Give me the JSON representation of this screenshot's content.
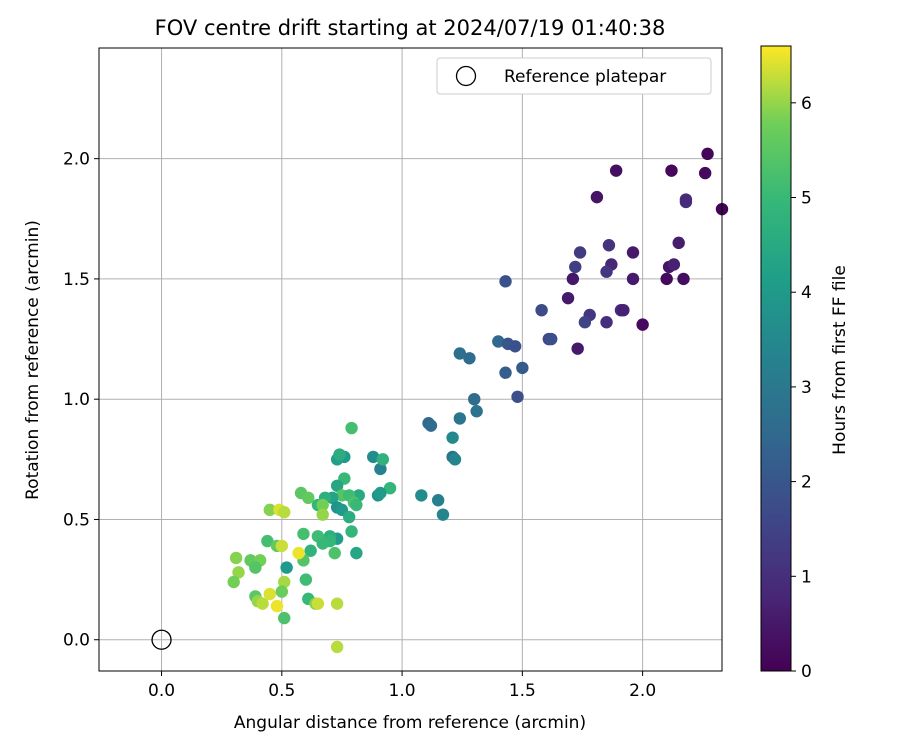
{
  "chart_data": {
    "type": "scatter",
    "title": "FOV centre drift starting at 2024/07/19 01:40:38",
    "xlabel": "Angular distance from reference (arcmin)",
    "ylabel": "Rotation from reference (arcmin)",
    "xlim": [
      -0.26,
      2.33
    ],
    "ylim": [
      -0.13,
      2.46
    ],
    "xticks": [
      "0.0",
      "0.5",
      "1.0",
      "1.5",
      "2.0"
    ],
    "yticks": [
      "0.0",
      "0.5",
      "1.0",
      "1.5",
      "2.0"
    ],
    "grid": true,
    "legend": {
      "placement": "top-right",
      "entries": [
        "Reference platepar"
      ]
    },
    "reference_point": {
      "x": 0.0,
      "y": 0.0
    },
    "colorbar": {
      "label": "Hours from first FF file",
      "colormap": "viridis",
      "range": [
        0,
        6.6
      ],
      "ticks": [
        "0",
        "1",
        "2",
        "3",
        "4",
        "5",
        "6"
      ]
    },
    "points": [
      [
        2.27,
        2.02,
        0.1
      ],
      [
        2.12,
        1.95,
        0.15
      ],
      [
        1.89,
        1.95,
        0.3
      ],
      [
        2.26,
        1.94,
        0.2
      ],
      [
        1.81,
        1.84,
        0.4
      ],
      [
        2.18,
        1.82,
        1.0
      ],
      [
        2.18,
        1.83,
        0.9
      ],
      [
        2.33,
        1.79,
        0.05
      ],
      [
        1.86,
        1.64,
        1.1
      ],
      [
        2.15,
        1.65,
        0.6
      ],
      [
        1.74,
        1.61,
        1.3
      ],
      [
        1.96,
        1.61,
        0.5
      ],
      [
        1.72,
        1.55,
        1.4
      ],
      [
        1.87,
        1.56,
        0.8
      ],
      [
        1.85,
        1.53,
        1.2
      ],
      [
        2.11,
        1.55,
        0.4
      ],
      [
        2.13,
        1.56,
        0.7
      ],
      [
        1.71,
        1.5,
        0.45
      ],
      [
        1.96,
        1.5,
        0.55
      ],
      [
        2.1,
        1.5,
        0.2
      ],
      [
        2.17,
        1.5,
        0.3
      ],
      [
        1.43,
        1.49,
        1.9
      ],
      [
        1.69,
        1.42,
        0.5
      ],
      [
        1.58,
        1.37,
        1.7
      ],
      [
        1.78,
        1.35,
        1.2
      ],
      [
        1.76,
        1.32,
        1.5
      ],
      [
        1.91,
        1.37,
        0.9
      ],
      [
        1.92,
        1.37,
        0.7
      ],
      [
        1.85,
        1.32,
        1.0
      ],
      [
        2.0,
        1.31,
        0.2
      ],
      [
        1.61,
        1.25,
        1.6
      ],
      [
        1.62,
        1.25,
        1.8
      ],
      [
        1.73,
        1.21,
        0.5
      ],
      [
        1.4,
        1.24,
        2.5
      ],
      [
        1.44,
        1.23,
        2.0
      ],
      [
        1.47,
        1.22,
        1.9
      ],
      [
        1.24,
        1.19,
        2.7
      ],
      [
        1.28,
        1.17,
        2.6
      ],
      [
        1.5,
        1.13,
        2.1
      ],
      [
        1.43,
        1.11,
        2.2
      ],
      [
        1.48,
        1.01,
        1.8
      ],
      [
        1.3,
        1.0,
        2.6
      ],
      [
        1.31,
        0.95,
        2.8
      ],
      [
        1.11,
        0.9,
        2.5
      ],
      [
        1.12,
        0.89,
        2.6
      ],
      [
        1.24,
        0.92,
        2.9
      ],
      [
        1.21,
        0.84,
        3.5
      ],
      [
        1.21,
        0.76,
        2.8
      ],
      [
        1.22,
        0.75,
        3.4
      ],
      [
        1.08,
        0.6,
        3.6
      ],
      [
        1.15,
        0.58,
        3.2
      ],
      [
        1.17,
        0.52,
        3.4
      ],
      [
        0.88,
        0.76,
        3.6
      ],
      [
        0.91,
        0.71,
        3.3
      ],
      [
        0.92,
        0.75,
        4.8
      ],
      [
        0.95,
        0.63,
        4.9
      ],
      [
        0.9,
        0.6,
        3.8
      ],
      [
        0.91,
        0.61,
        4.0
      ],
      [
        0.82,
        0.6,
        4.5
      ],
      [
        0.79,
        0.88,
        5.2
      ],
      [
        0.76,
        0.76,
        4.0
      ],
      [
        0.73,
        0.75,
        4.2
      ],
      [
        0.74,
        0.77,
        4.6
      ],
      [
        0.76,
        0.67,
        5.0
      ],
      [
        0.73,
        0.64,
        4.4
      ],
      [
        0.75,
        0.6,
        5.4
      ],
      [
        0.78,
        0.6,
        5.1
      ],
      [
        0.8,
        0.57,
        5.3
      ],
      [
        0.71,
        0.59,
        4.3
      ],
      [
        0.68,
        0.59,
        4.7
      ],
      [
        0.65,
        0.56,
        4.9
      ],
      [
        0.73,
        0.55,
        3.8
      ],
      [
        0.75,
        0.54,
        4.0
      ],
      [
        0.78,
        0.51,
        4.6
      ],
      [
        0.81,
        0.56,
        5.0
      ],
      [
        0.58,
        0.61,
        5.5
      ],
      [
        0.61,
        0.59,
        5.6
      ],
      [
        0.67,
        0.56,
        5.8
      ],
      [
        0.45,
        0.54,
        5.9
      ],
      [
        0.49,
        0.54,
        6.4
      ],
      [
        0.51,
        0.53,
        6.2
      ],
      [
        0.67,
        0.52,
        6.0
      ],
      [
        0.73,
        0.42,
        4.1
      ],
      [
        0.7,
        0.43,
        4.7
      ],
      [
        0.7,
        0.41,
        4.9
      ],
      [
        0.65,
        0.43,
        5.1
      ],
      [
        0.59,
        0.44,
        5.2
      ],
      [
        0.79,
        0.45,
        4.9
      ],
      [
        0.67,
        0.4,
        5.0
      ],
      [
        0.81,
        0.36,
        4.4
      ],
      [
        0.72,
        0.36,
        5.3
      ],
      [
        0.62,
        0.37,
        4.8
      ],
      [
        0.59,
        0.33,
        5.4
      ],
      [
        0.57,
        0.36,
        6.5
      ],
      [
        0.52,
        0.3,
        4.0
      ],
      [
        0.44,
        0.41,
        5.2
      ],
      [
        0.48,
        0.39,
        5.6
      ],
      [
        0.5,
        0.39,
        6.3
      ],
      [
        0.31,
        0.34,
        5.9
      ],
      [
        0.37,
        0.33,
        5.6
      ],
      [
        0.41,
        0.33,
        5.8
      ],
      [
        0.39,
        0.3,
        5.4
      ],
      [
        0.32,
        0.28,
        6.0
      ],
      [
        0.3,
        0.24,
        5.8
      ],
      [
        0.6,
        0.25,
        5.1
      ],
      [
        0.51,
        0.24,
        6.1
      ],
      [
        0.39,
        0.18,
        5.5
      ],
      [
        0.4,
        0.16,
        6.0
      ],
      [
        0.42,
        0.15,
        6.2
      ],
      [
        0.45,
        0.19,
        6.4
      ],
      [
        0.5,
        0.2,
        5.7
      ],
      [
        0.61,
        0.17,
        5.0
      ],
      [
        0.64,
        0.15,
        5.9
      ],
      [
        0.65,
        0.15,
        6.3
      ],
      [
        0.73,
        0.15,
        6.2
      ],
      [
        0.48,
        0.14,
        6.5
      ],
      [
        0.51,
        0.09,
        5.3
      ],
      [
        0.73,
        -0.03,
        6.2
      ]
    ]
  }
}
